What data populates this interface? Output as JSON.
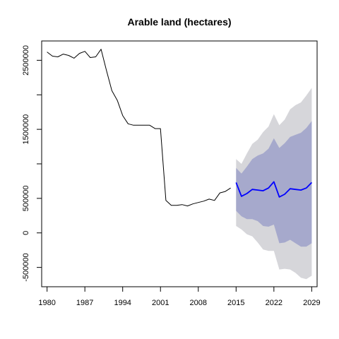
{
  "chart_data": {
    "type": "line",
    "title": "Arable land (hectares)",
    "xlabel": "",
    "ylabel": "",
    "xlim": [
      1979,
      2030
    ],
    "ylim": [
      -780000,
      2780000
    ],
    "x_ticks": [
      1980,
      1987,
      1994,
      2001,
      2008,
      2015,
      2022,
      2029
    ],
    "y_ticks": [
      -500000,
      0,
      500000,
      1500000,
      2500000
    ],
    "y_tick_labels": [
      "-500000",
      "0",
      "500000",
      "1500000",
      "2500000"
    ],
    "grid": false,
    "legend": "none",
    "colors": {
      "history": "#000000",
      "forecast": "#0000ff",
      "band_80": "#a6a9cc",
      "band_95": "#d6d6da"
    },
    "series": [
      {
        "role": "history",
        "x": [
          1980,
          1981,
          1982,
          1983,
          1984,
          1985,
          1986,
          1987,
          1988,
          1989,
          1990,
          1991,
          1992,
          1993,
          1994,
          1995,
          1996,
          1997,
          1998,
          1999,
          2000,
          2001,
          2002,
          2003,
          2004,
          2005,
          2006,
          2007,
          2008,
          2009,
          2010,
          2011,
          2012,
          2013,
          2014
        ],
        "values": [
          2620000,
          2560000,
          2550000,
          2590000,
          2570000,
          2530000,
          2600000,
          2630000,
          2540000,
          2550000,
          2660000,
          2350000,
          2060000,
          1920000,
          1700000,
          1580000,
          1560000,
          1560000,
          1560000,
          1560000,
          1510000,
          1510000,
          470000,
          400000,
          400000,
          410000,
          390000,
          420000,
          440000,
          460000,
          490000,
          470000,
          580000,
          600000,
          650000
        ]
      },
      {
        "role": "forecast",
        "x": [
          2015,
          2016,
          2017,
          2018,
          2019,
          2020,
          2021,
          2022,
          2023,
          2024,
          2025,
          2026,
          2027,
          2028,
          2029
        ],
        "values": [
          730000,
          530000,
          570000,
          630000,
          620000,
          610000,
          650000,
          740000,
          520000,
          560000,
          640000,
          630000,
          620000,
          650000,
          730000
        ],
        "lower_80": [
          320000,
          240000,
          200000,
          200000,
          170000,
          100000,
          90000,
          120000,
          -150000,
          -140000,
          -100000,
          -150000,
          -200000,
          -200000,
          -150000
        ],
        "upper_80": [
          940000,
          860000,
          960000,
          1070000,
          1120000,
          1150000,
          1220000,
          1370000,
          1230000,
          1300000,
          1390000,
          1420000,
          1450000,
          1520000,
          1620000
        ],
        "lower_95": [
          100000,
          50000,
          -20000,
          -50000,
          -140000,
          -240000,
          -260000,
          -260000,
          -530000,
          -520000,
          -530000,
          -580000,
          -650000,
          -670000,
          -620000
        ],
        "upper_95": [
          1070000,
          1000000,
          1150000,
          1290000,
          1350000,
          1460000,
          1540000,
          1720000,
          1560000,
          1640000,
          1790000,
          1850000,
          1890000,
          1990000,
          2100000
        ]
      }
    ]
  }
}
